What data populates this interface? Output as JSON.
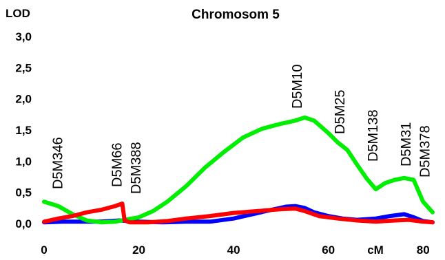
{
  "chart_data": {
    "type": "line",
    "title": "Chromosom 5",
    "ylabel": "LOD",
    "xlabel": "cM",
    "xlim": [
      0,
      82
    ],
    "ylim": [
      0,
      3.0
    ],
    "x_ticks": [
      "0",
      "20",
      "40",
      "60",
      "80"
    ],
    "y_ticks": [
      "0,0",
      "0,5",
      "1,0",
      "1,5",
      "2,0",
      "2,5",
      "3,0"
    ],
    "markers": [
      {
        "label": "D5M346",
        "x": 3
      },
      {
        "label": "D5M66",
        "x": 15.5
      },
      {
        "label": "D5M388",
        "x": 19.5
      },
      {
        "label": "D5M10",
        "x": 53.5
      },
      {
        "label": "D5M25",
        "x": 62.5
      },
      {
        "label": "D5M138",
        "x": 69.5
      },
      {
        "label": "D5M31",
        "x": 76.5
      },
      {
        "label": "D5M378",
        "x": 80.5
      }
    ],
    "series": [
      {
        "color": "#00ee00",
        "x": [
          0,
          3,
          6,
          9,
          12,
          15,
          17,
          20,
          23,
          26,
          30,
          34,
          38,
          42,
          46,
          50,
          53,
          55,
          57,
          60,
          62,
          64,
          66,
          68,
          70,
          72,
          74,
          76,
          78,
          80,
          82
        ],
        "y": [
          0.35,
          0.28,
          0.15,
          0.05,
          0.02,
          0.03,
          0.06,
          0.1,
          0.2,
          0.35,
          0.6,
          0.9,
          1.15,
          1.38,
          1.52,
          1.6,
          1.65,
          1.7,
          1.65,
          1.45,
          1.3,
          1.18,
          0.95,
          0.73,
          0.55,
          0.65,
          0.7,
          0.73,
          0.7,
          0.35,
          0.18
        ]
      },
      {
        "color": "#0000ff",
        "x": [
          0,
          4,
          8,
          12,
          16,
          20,
          25,
          30,
          35,
          40,
          44,
          48,
          51,
          53,
          55,
          57,
          60,
          63,
          66,
          70,
          73,
          76,
          78,
          80,
          82
        ],
        "y": [
          0.02,
          0.03,
          0.03,
          0.03,
          0.05,
          0.03,
          0.02,
          0.03,
          0.03,
          0.08,
          0.15,
          0.22,
          0.27,
          0.28,
          0.25,
          0.18,
          0.12,
          0.08,
          0.06,
          0.08,
          0.12,
          0.15,
          0.1,
          0.04,
          0.02
        ]
      },
      {
        "color": "#ff0000",
        "x": [
          0,
          3,
          6,
          9,
          12,
          15,
          16.5,
          17,
          18,
          22,
          26,
          30,
          35,
          40,
          45,
          50,
          53,
          55,
          58,
          62,
          66,
          70,
          74,
          77,
          80,
          82
        ],
        "y": [
          0.03,
          0.08,
          0.12,
          0.18,
          0.22,
          0.28,
          0.32,
          0.05,
          0.02,
          0.02,
          0.04,
          0.08,
          0.12,
          0.17,
          0.2,
          0.23,
          0.24,
          0.2,
          0.12,
          0.08,
          0.05,
          0.03,
          0.05,
          0.06,
          0.03,
          0.02
        ]
      }
    ]
  }
}
